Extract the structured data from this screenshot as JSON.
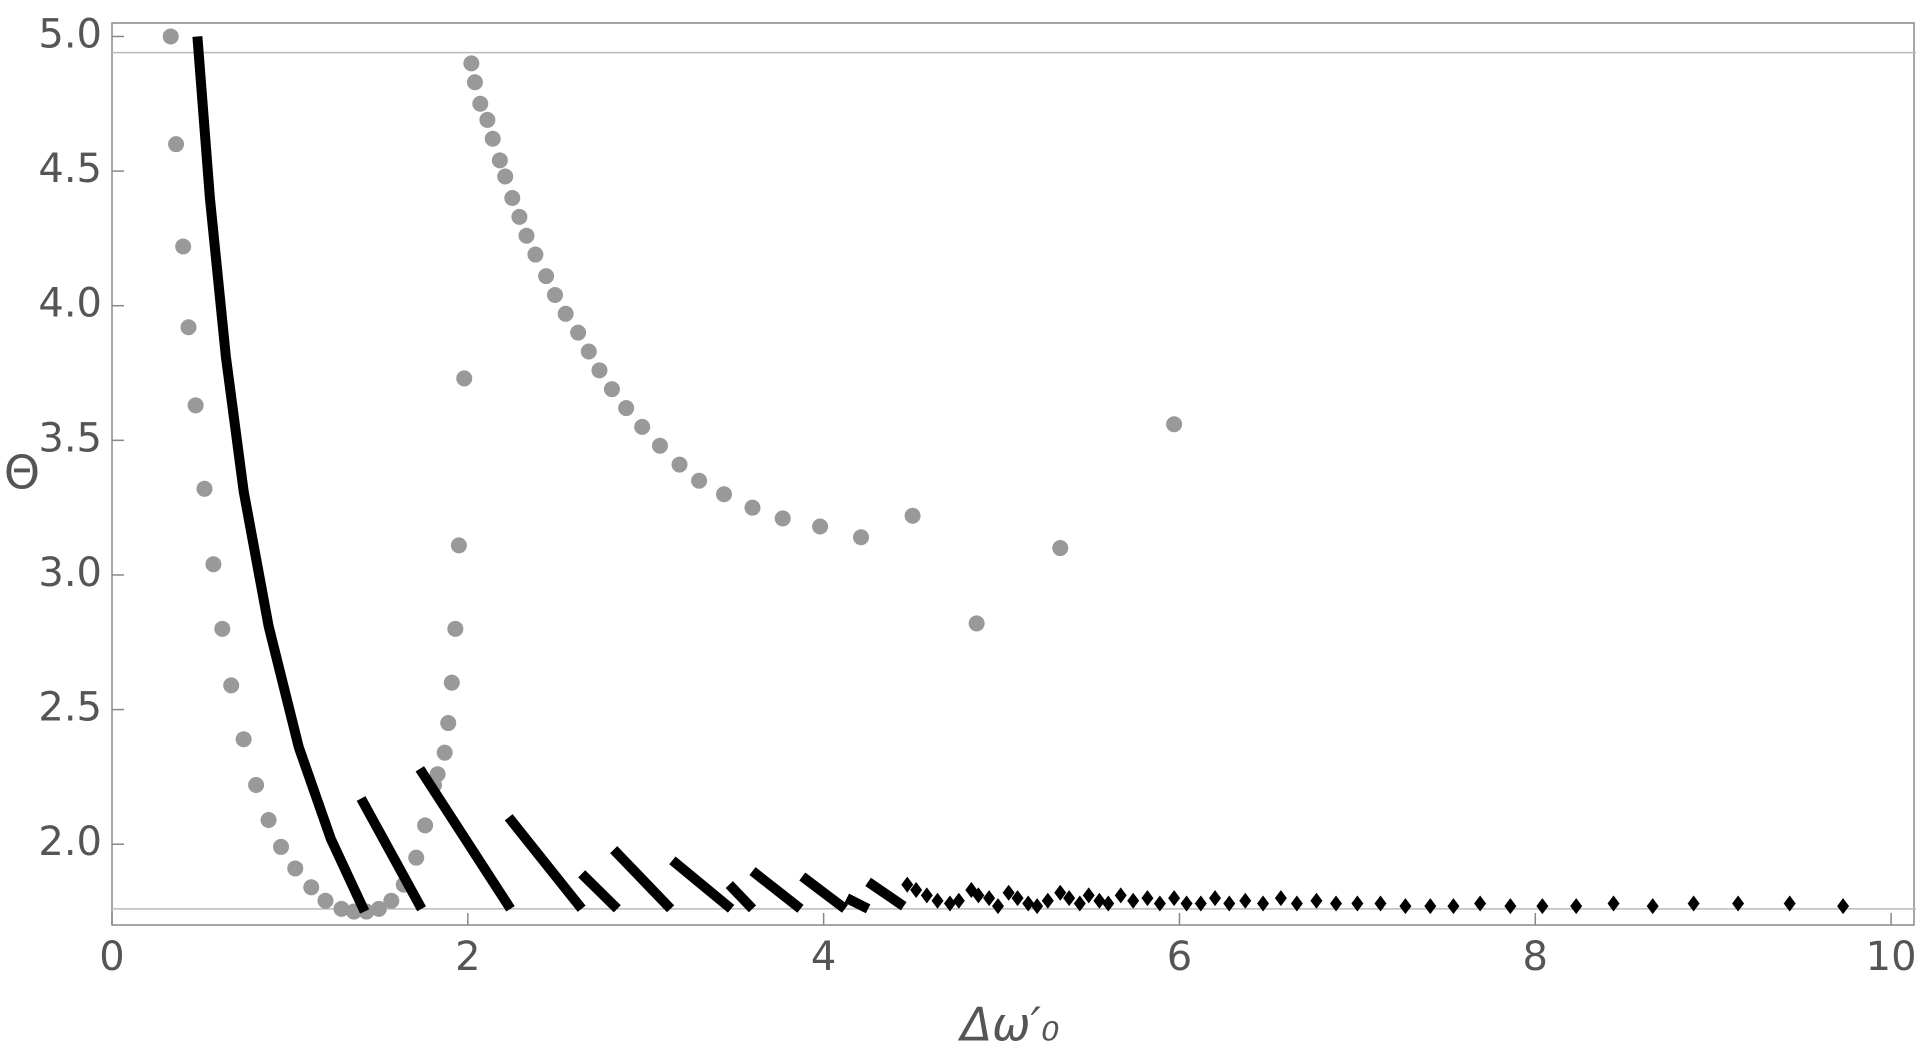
{
  "chart_data": {
    "type": "scatter",
    "xlabel": "Δω′₀",
    "ylabel": "Θ",
    "xlim": [
      0,
      10.14
    ],
    "ylim": [
      1.7,
      5.05
    ],
    "xticks": [
      0,
      2,
      4,
      6,
      8,
      10
    ],
    "yticks": [
      {
        "value": 2,
        "label": "2.0"
      },
      {
        "value": 2.5,
        "label": "2.5"
      },
      {
        "value": 3,
        "label": "3.0"
      },
      {
        "value": 3.5,
        "label": "3.5"
      },
      {
        "value": 4,
        "label": "4.0"
      },
      {
        "value": 4.5,
        "label": "4.5"
      },
      {
        "value": 5,
        "label": "5.0"
      }
    ],
    "hlines": [
      4.94,
      1.76
    ],
    "series": [
      {
        "color": "#999999",
        "marker": "circle",
        "x": [
          0.33,
          0.36,
          0.4,
          0.43,
          0.47,
          0.52,
          0.57,
          0.62,
          0.67,
          0.74,
          0.81,
          0.88,
          0.95,
          1.03,
          1.12,
          1.2,
          1.29,
          1.36,
          1.43,
          1.5,
          1.57,
          1.64,
          1.71,
          1.76,
          1.81,
          1.83,
          1.87,
          1.89,
          1.91,
          1.93,
          1.95,
          1.98,
          2.02,
          2.04,
          2.07,
          2.11,
          2.14,
          2.18,
          2.21,
          2.25,
          2.29,
          2.33,
          2.38,
          2.44,
          2.49,
          2.55,
          2.62,
          2.68,
          2.74,
          2.81,
          2.89,
          2.98,
          3.08,
          3.19,
          3.3,
          3.44,
          3.6,
          3.77,
          3.98,
          4.21,
          4.5,
          4.86,
          5.33,
          5.97
        ],
        "y": [
          5.0,
          4.6,
          4.22,
          3.92,
          3.63,
          3.32,
          3.04,
          2.8,
          2.59,
          2.39,
          2.22,
          2.09,
          1.99,
          1.91,
          1.84,
          1.79,
          1.76,
          1.75,
          1.75,
          1.76,
          1.79,
          1.85,
          1.95,
          2.07,
          2.22,
          2.26,
          2.34,
          2.45,
          2.6,
          2.8,
          3.11,
          3.73,
          4.9,
          4.83,
          4.75,
          4.69,
          4.62,
          4.54,
          4.48,
          4.4,
          4.33,
          4.26,
          4.19,
          4.11,
          4.04,
          3.97,
          3.9,
          3.83,
          3.76,
          3.69,
          3.62,
          3.55,
          3.48,
          3.41,
          3.35,
          3.3,
          3.25,
          3.21,
          3.18,
          3.14,
          3.22,
          2.82,
          3.1,
          3.56
        ]
      },
      {
        "color": "#000000",
        "marker": "line",
        "x": [
          0.48,
          0.55,
          0.64,
          0.74,
          0.88,
          1.05,
          1.23,
          1.42,
          null,
          1.4,
          1.74,
          null,
          1.73,
          2.24,
          null,
          2.23,
          2.64,
          null,
          2.64,
          2.84,
          null,
          2.82,
          3.14,
          null,
          3.15,
          3.48,
          null,
          3.47,
          3.6,
          null,
          3.6,
          3.87,
          null,
          3.88,
          4.12,
          null,
          4.13,
          4.25,
          null,
          4.25,
          4.45
        ],
        "y": [
          5.0,
          4.4,
          3.81,
          3.31,
          2.81,
          2.36,
          2.02,
          1.75,
          null,
          2.17,
          1.76,
          null,
          2.28,
          1.76,
          null,
          2.1,
          1.76,
          null,
          1.89,
          1.76,
          null,
          1.98,
          1.76,
          null,
          1.94,
          1.76,
          null,
          1.85,
          1.76,
          null,
          1.9,
          1.76,
          null,
          1.88,
          1.76,
          null,
          1.8,
          1.76,
          null,
          1.86,
          1.77
        ]
      },
      {
        "color": "#000000",
        "marker": "diamond",
        "x": [
          4.47,
          4.52,
          4.58,
          4.64,
          4.71,
          4.76,
          4.83,
          4.87,
          4.93,
          4.98,
          5.04,
          5.09,
          5.15,
          5.2,
          5.26,
          5.33,
          5.38,
          5.44,
          5.49,
          5.55,
          5.6,
          5.67,
          5.74,
          5.82,
          5.89,
          5.97,
          6.04,
          6.12,
          6.2,
          6.28,
          6.37,
          6.47,
          6.57,
          6.66,
          6.77,
          6.88,
          7.0,
          7.13,
          7.27,
          7.41,
          7.54,
          7.69,
          7.86,
          8.04,
          8.23,
          8.44,
          8.66,
          8.89,
          9.14,
          9.43,
          9.73
        ],
        "y": [
          1.85,
          1.83,
          1.81,
          1.79,
          1.78,
          1.79,
          1.83,
          1.81,
          1.8,
          1.77,
          1.82,
          1.8,
          1.78,
          1.77,
          1.79,
          1.82,
          1.8,
          1.78,
          1.81,
          1.79,
          1.78,
          1.81,
          1.79,
          1.8,
          1.78,
          1.8,
          1.78,
          1.78,
          1.8,
          1.78,
          1.79,
          1.78,
          1.8,
          1.78,
          1.79,
          1.78,
          1.78,
          1.78,
          1.77,
          1.77,
          1.77,
          1.78,
          1.77,
          1.77,
          1.77,
          1.78,
          1.77,
          1.78,
          1.78,
          1.78,
          1.77
        ]
      }
    ]
  }
}
